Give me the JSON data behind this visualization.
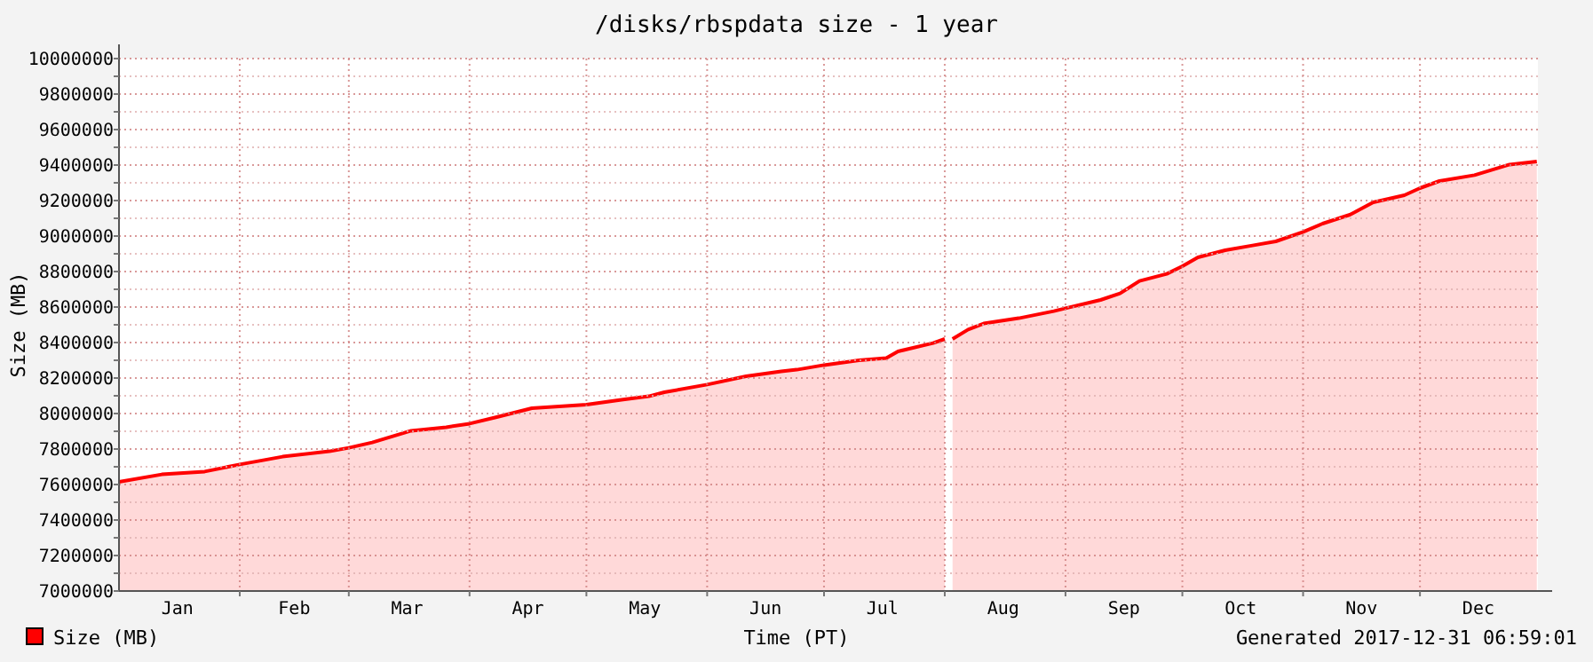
{
  "chart_data": {
    "type": "area",
    "title": "/disks/rbspdata size - 1 year",
    "xlabel": "Time (PT)",
    "ylabel": "Size (MB)",
    "annotations": [
      "Generated 2017-12-31 06:59:01"
    ],
    "legend": "bottom left",
    "grid": true,
    "xlim": [
      "2017-01-01",
      "2017-12-31T07:00"
    ],
    "xticks": [
      {
        "value": "2017-01-16",
        "label": "Jan"
      },
      {
        "value": "2017-02-01",
        "label": null
      },
      {
        "value": "2017-02-15",
        "label": "Feb"
      },
      {
        "value": "2017-03-01",
        "label": null
      },
      {
        "value": "2017-03-16",
        "label": "Mar"
      },
      {
        "value": "2017-04-01",
        "label": null
      },
      {
        "value": "2017-04-16",
        "label": "Apr"
      },
      {
        "value": "2017-05-01",
        "label": null
      },
      {
        "value": "2017-05-16",
        "label": "May"
      },
      {
        "value": "2017-06-01",
        "label": null
      },
      {
        "value": "2017-06-16",
        "label": "Jun"
      },
      {
        "value": "2017-07-01",
        "label": null
      },
      {
        "value": "2017-07-16",
        "label": "Jul"
      },
      {
        "value": "2017-08-01",
        "label": null
      },
      {
        "value": "2017-08-16",
        "label": "Aug"
      },
      {
        "value": "2017-09-01",
        "label": null
      },
      {
        "value": "2017-09-16",
        "label": "Sep"
      },
      {
        "value": "2017-10-01",
        "label": null
      },
      {
        "value": "2017-10-16",
        "label": "Oct"
      },
      {
        "value": "2017-11-01",
        "label": null
      },
      {
        "value": "2017-11-16",
        "label": "Nov"
      },
      {
        "value": "2017-12-01",
        "label": null
      },
      {
        "value": "2017-12-16",
        "label": "Dec"
      }
    ],
    "ylim": [
      7000000,
      10000000
    ],
    "yticks": [
      7000000,
      {
        "value": 7100000,
        "label": null
      },
      7200000,
      {
        "value": 7300000,
        "label": null
      },
      7400000,
      {
        "value": 7500000,
        "label": null
      },
      7600000,
      {
        "value": 7700000,
        "label": null
      },
      7800000,
      {
        "value": 7900000,
        "label": null
      },
      8000000,
      {
        "value": 8100000,
        "label": null
      },
      8200000,
      {
        "value": 8300000,
        "label": null
      },
      8400000,
      {
        "value": 8500000,
        "label": null
      },
      8600000,
      {
        "value": 8700000,
        "label": null
      },
      8800000,
      {
        "value": 8900000,
        "label": null
      },
      9000000,
      {
        "value": 9100000,
        "label": null
      },
      9200000,
      {
        "value": 9300000,
        "label": null
      },
      9400000,
      {
        "value": 9500000,
        "label": null
      },
      9600000,
      {
        "value": 9700000,
        "label": null
      },
      9800000,
      {
        "value": 9900000,
        "label": null
      },
      10000000
    ],
    "series": [
      {
        "name": "Size (MB)",
        "color": "#ff0000",
        "x": [
          "2017-01-01",
          "2017-01-12",
          "2017-01-23",
          "2017-02-01",
          "2017-02-07",
          "2017-02-12",
          "2017-02-24",
          "2017-03-01",
          "2017-03-07",
          "2017-03-17",
          "2017-03-26",
          "2017-04-01",
          "2017-04-08",
          "2017-04-17",
          "2017-05-01",
          "2017-05-10",
          "2017-05-17",
          "2017-05-21",
          "2017-06-01",
          "2017-06-11",
          "2017-06-20",
          "2017-06-24",
          "2017-07-01",
          "2017-07-10",
          "2017-07-17",
          "2017-07-20",
          "2017-07-29",
          "2017-08-01",
          "2017-08-02",
          "2017-08-03",
          "2017-08-07",
          "2017-08-11",
          "2017-08-20",
          "2017-08-29",
          "2017-09-01",
          "2017-09-10",
          "2017-09-15",
          "2017-09-20",
          "2017-09-27",
          "2017-10-01",
          "2017-10-05",
          "2017-10-12",
          "2017-10-19",
          "2017-10-25",
          "2017-11-01",
          "2017-11-06",
          "2017-11-13",
          "2017-11-19",
          "2017-11-27",
          "2017-12-01",
          "2017-12-06",
          "2017-12-15",
          "2017-12-24",
          "2017-12-31"
        ],
        "values": [
          7615000,
          7657000,
          7673000,
          7713000,
          7737000,
          7757000,
          7787000,
          7807000,
          7837000,
          7903000,
          7923000,
          7943000,
          7980000,
          8030000,
          8050000,
          8077000,
          8097000,
          8120000,
          8163000,
          8210000,
          8237000,
          8247000,
          8273000,
          8300000,
          8313000,
          8350000,
          8397000,
          8420000,
          null,
          8420000,
          8473000,
          8507000,
          8537000,
          8577000,
          8593000,
          8640000,
          8677000,
          8747000,
          8787000,
          8830000,
          8880000,
          8920000,
          8947000,
          8970000,
          9023000,
          9070000,
          9120000,
          9190000,
          9230000,
          9270000,
          9310000,
          9343000,
          9403000,
          9420000
        ]
      }
    ]
  }
}
